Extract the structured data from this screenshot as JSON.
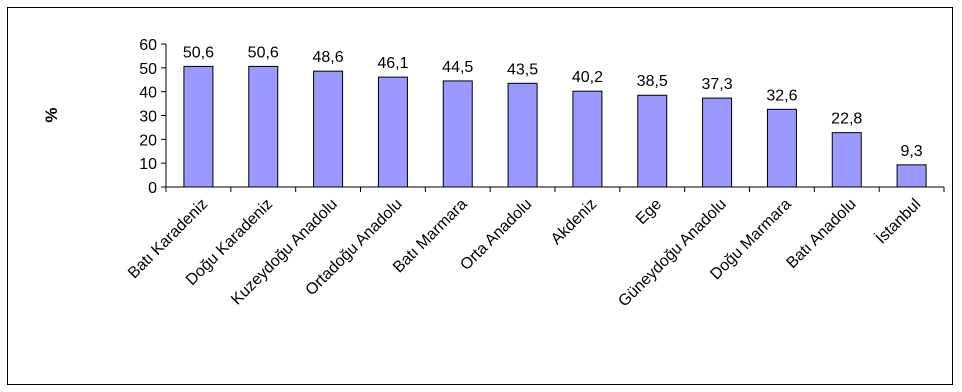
{
  "chart_data": {
    "type": "bar",
    "title": "",
    "xlabel": "",
    "ylabel": "%",
    "ylim": [
      0,
      60
    ],
    "yticks": [
      0,
      10,
      20,
      30,
      40,
      50,
      60
    ],
    "grid": false,
    "legend": "none",
    "categories": [
      "Batı Karadeniz",
      "Doğu Karadeniz",
      "Kuzeydoğu Anadolu",
      "Ortadoğu Anadolu",
      "Batı Marmara",
      "Orta Anadolu",
      "Akdeniz",
      "Ege",
      "Güneydoğu Anadolu",
      "Doğu Marmara",
      "Batı Anadolu",
      "İstanbul"
    ],
    "values": [
      50.6,
      50.6,
      48.6,
      46.1,
      44.5,
      43.5,
      40.2,
      38.5,
      37.3,
      32.6,
      22.8,
      9.3
    ],
    "value_labels": [
      "50,6",
      "50,6",
      "48,6",
      "46,1",
      "44,5",
      "43,5",
      "40,2",
      "38,5",
      "37,3",
      "32,6",
      "22,8",
      "9,3"
    ],
    "colors": {
      "bar_fill": "#9999ff",
      "bar_stroke": "#000000",
      "axis": "#000000"
    }
  }
}
